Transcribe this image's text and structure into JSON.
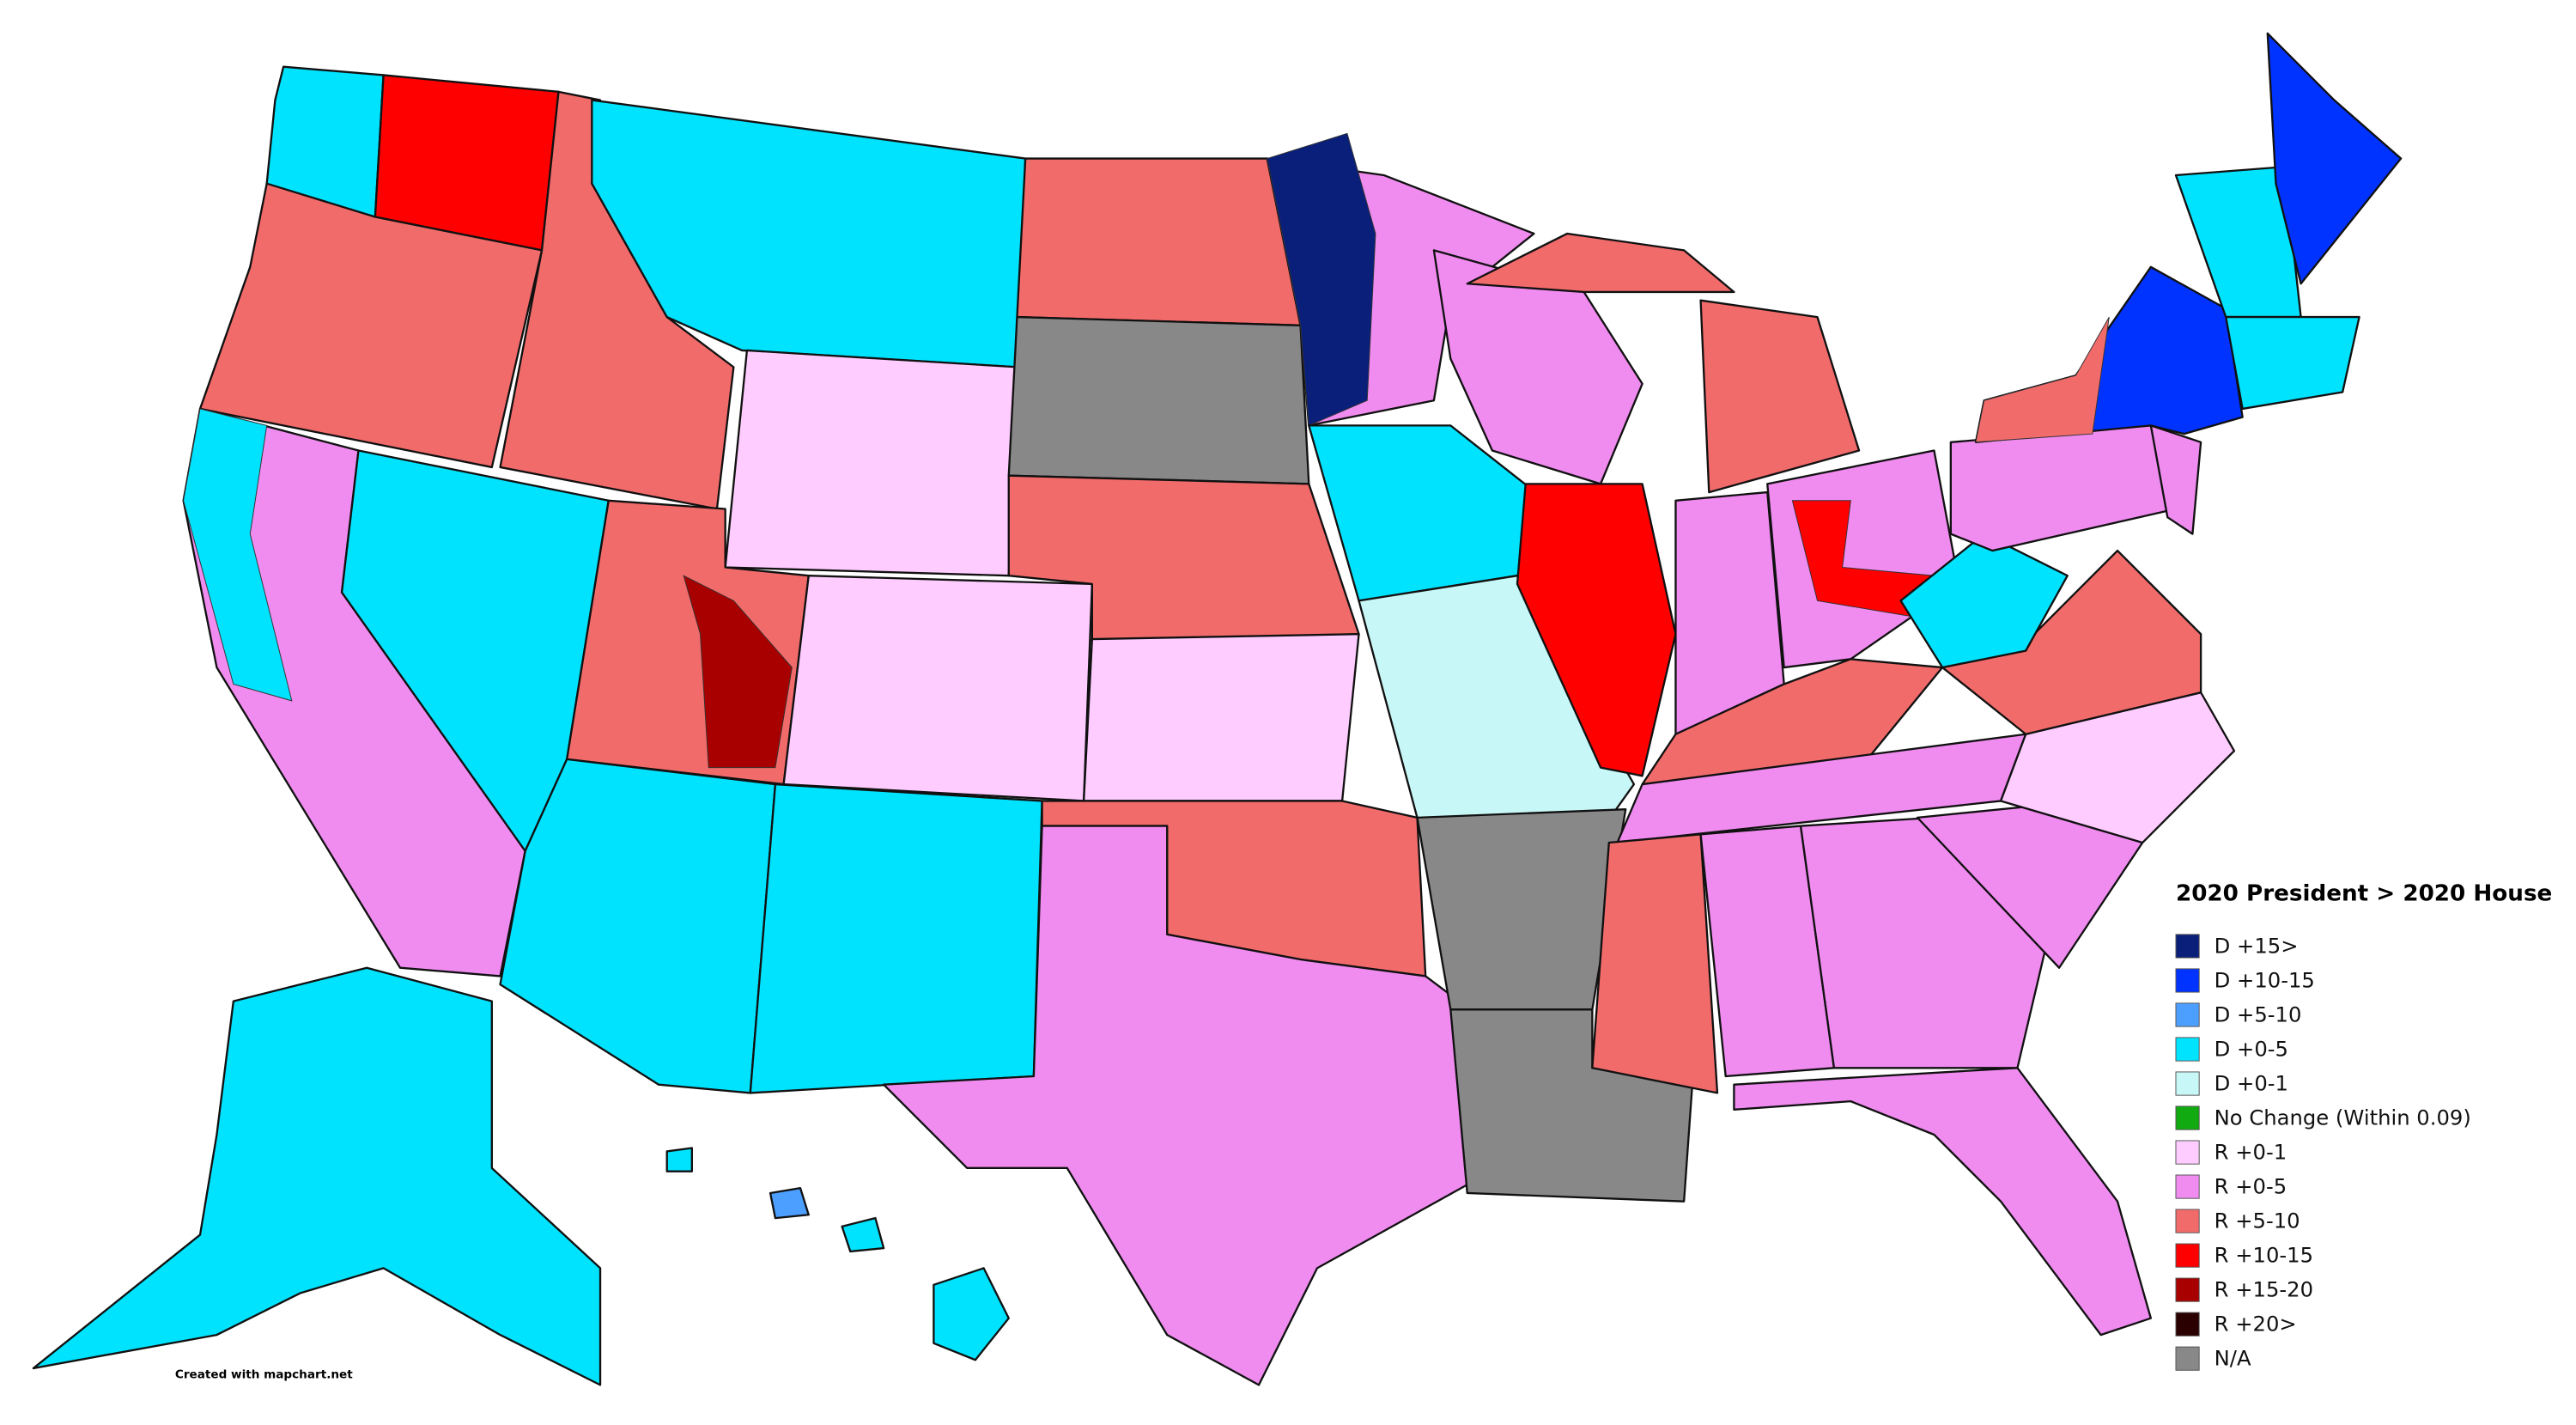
{
  "map": {
    "legend": {
      "title": "2020 President > 2020 House",
      "items": [
        {
          "label": "D +15>",
          "color": "#0a1f7a"
        },
        {
          "label": "D +10-15",
          "color": "#0033ff"
        },
        {
          "label": "D +5-10",
          "color": "#4d9fff"
        },
        {
          "label": "D +0-5",
          "color": "#00e3ff"
        },
        {
          "label": "D +0-1",
          "color": "#c8f7f7"
        },
        {
          "label": "No Change (Within 0.09)",
          "color": "#11aa11"
        },
        {
          "label": "R +0-1",
          "color": "#ffccff"
        },
        {
          "label": "R +0-5",
          "color": "#f08cf0"
        },
        {
          "label": "R +5-10",
          "color": "#f26b6b"
        },
        {
          "label": "R +10-15",
          "color": "#ff0000"
        },
        {
          "label": "R +15-20",
          "color": "#a80000"
        },
        {
          "label": "R +20>",
          "color": "#2b0000"
        },
        {
          "label": "N/A",
          "color": "#888888"
        }
      ]
    },
    "credit": "Created with mapchart.net"
  }
}
